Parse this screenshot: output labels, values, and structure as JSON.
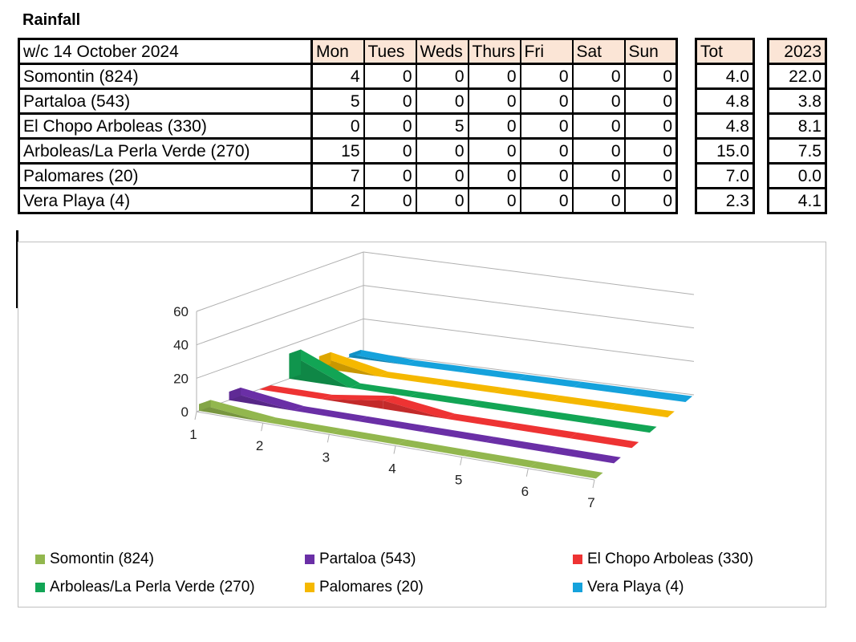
{
  "title": "Rainfall",
  "table": {
    "week_label": "w/c 14 October 2024",
    "days": [
      "Mon",
      "Tues",
      "Weds",
      "Thurs",
      "Fri",
      "Sat",
      "Sun"
    ],
    "tot_label": "Tot",
    "prev_label": "2023",
    "rows": [
      {
        "name": "Somontin (824)",
        "values": [
          "4",
          "0",
          "0",
          "0",
          "0",
          "0",
          "0"
        ],
        "tot": "4.0",
        "prev": "22.0"
      },
      {
        "name": "Partaloa (543)",
        "values": [
          "5",
          "0",
          "0",
          "0",
          "0",
          "0",
          "0"
        ],
        "tot": "4.8",
        "prev": "3.8"
      },
      {
        "name": "El Chopo Arboleas (330)",
        "values": [
          "0",
          "0",
          "5",
          "0",
          "0",
          "0",
          "0"
        ],
        "tot": "4.8",
        "prev": "8.1"
      },
      {
        "name": "Arboleas/La Perla Verde (270)",
        "values": [
          "15",
          "0",
          "0",
          "0",
          "0",
          "0",
          "0"
        ],
        "tot": "15.0",
        "prev": "7.5"
      },
      {
        "name": "Palomares (20)",
        "values": [
          "7",
          "0",
          "0",
          "0",
          "0",
          "0",
          "0"
        ],
        "tot": "7.0",
        "prev": "0.0"
      },
      {
        "name": "Vera Playa (4)",
        "values": [
          "2",
          "0",
          "0",
          "0",
          "0",
          "0",
          "0"
        ],
        "tot": "2.3",
        "prev": "4.1"
      }
    ]
  },
  "chart_data": {
    "type": "line",
    "style": "3d-ribbon",
    "categories": [
      "1",
      "2",
      "3",
      "4",
      "5",
      "6",
      "7"
    ],
    "ylim": [
      0,
      60
    ],
    "yticks": [
      "0",
      "20",
      "40",
      "60"
    ],
    "legend_position": "bottom",
    "series": [
      {
        "name": "Somontin (824)",
        "values": [
          4,
          0,
          0,
          0,
          0,
          0,
          0
        ],
        "color": "#92b74e"
      },
      {
        "name": "Partaloa (543)",
        "values": [
          5,
          0,
          0,
          0,
          0,
          0,
          0
        ],
        "color": "#6a2fa6"
      },
      {
        "name": "El Chopo Arboleas (330)",
        "values": [
          0,
          0,
          5,
          0,
          0,
          0,
          0
        ],
        "color": "#ee3333"
      },
      {
        "name": "Arboleas/La Perla Verde (270)",
        "values": [
          15,
          0,
          0,
          0,
          0,
          0,
          0
        ],
        "color": "#12a555"
      },
      {
        "name": "Palomares (20)",
        "values": [
          7,
          0,
          0,
          0,
          0,
          0,
          0
        ],
        "color": "#f5b800"
      },
      {
        "name": "Vera Playa (4)",
        "values": [
          2,
          0,
          0,
          0,
          0,
          0,
          0
        ],
        "color": "#15a2dc"
      }
    ]
  }
}
